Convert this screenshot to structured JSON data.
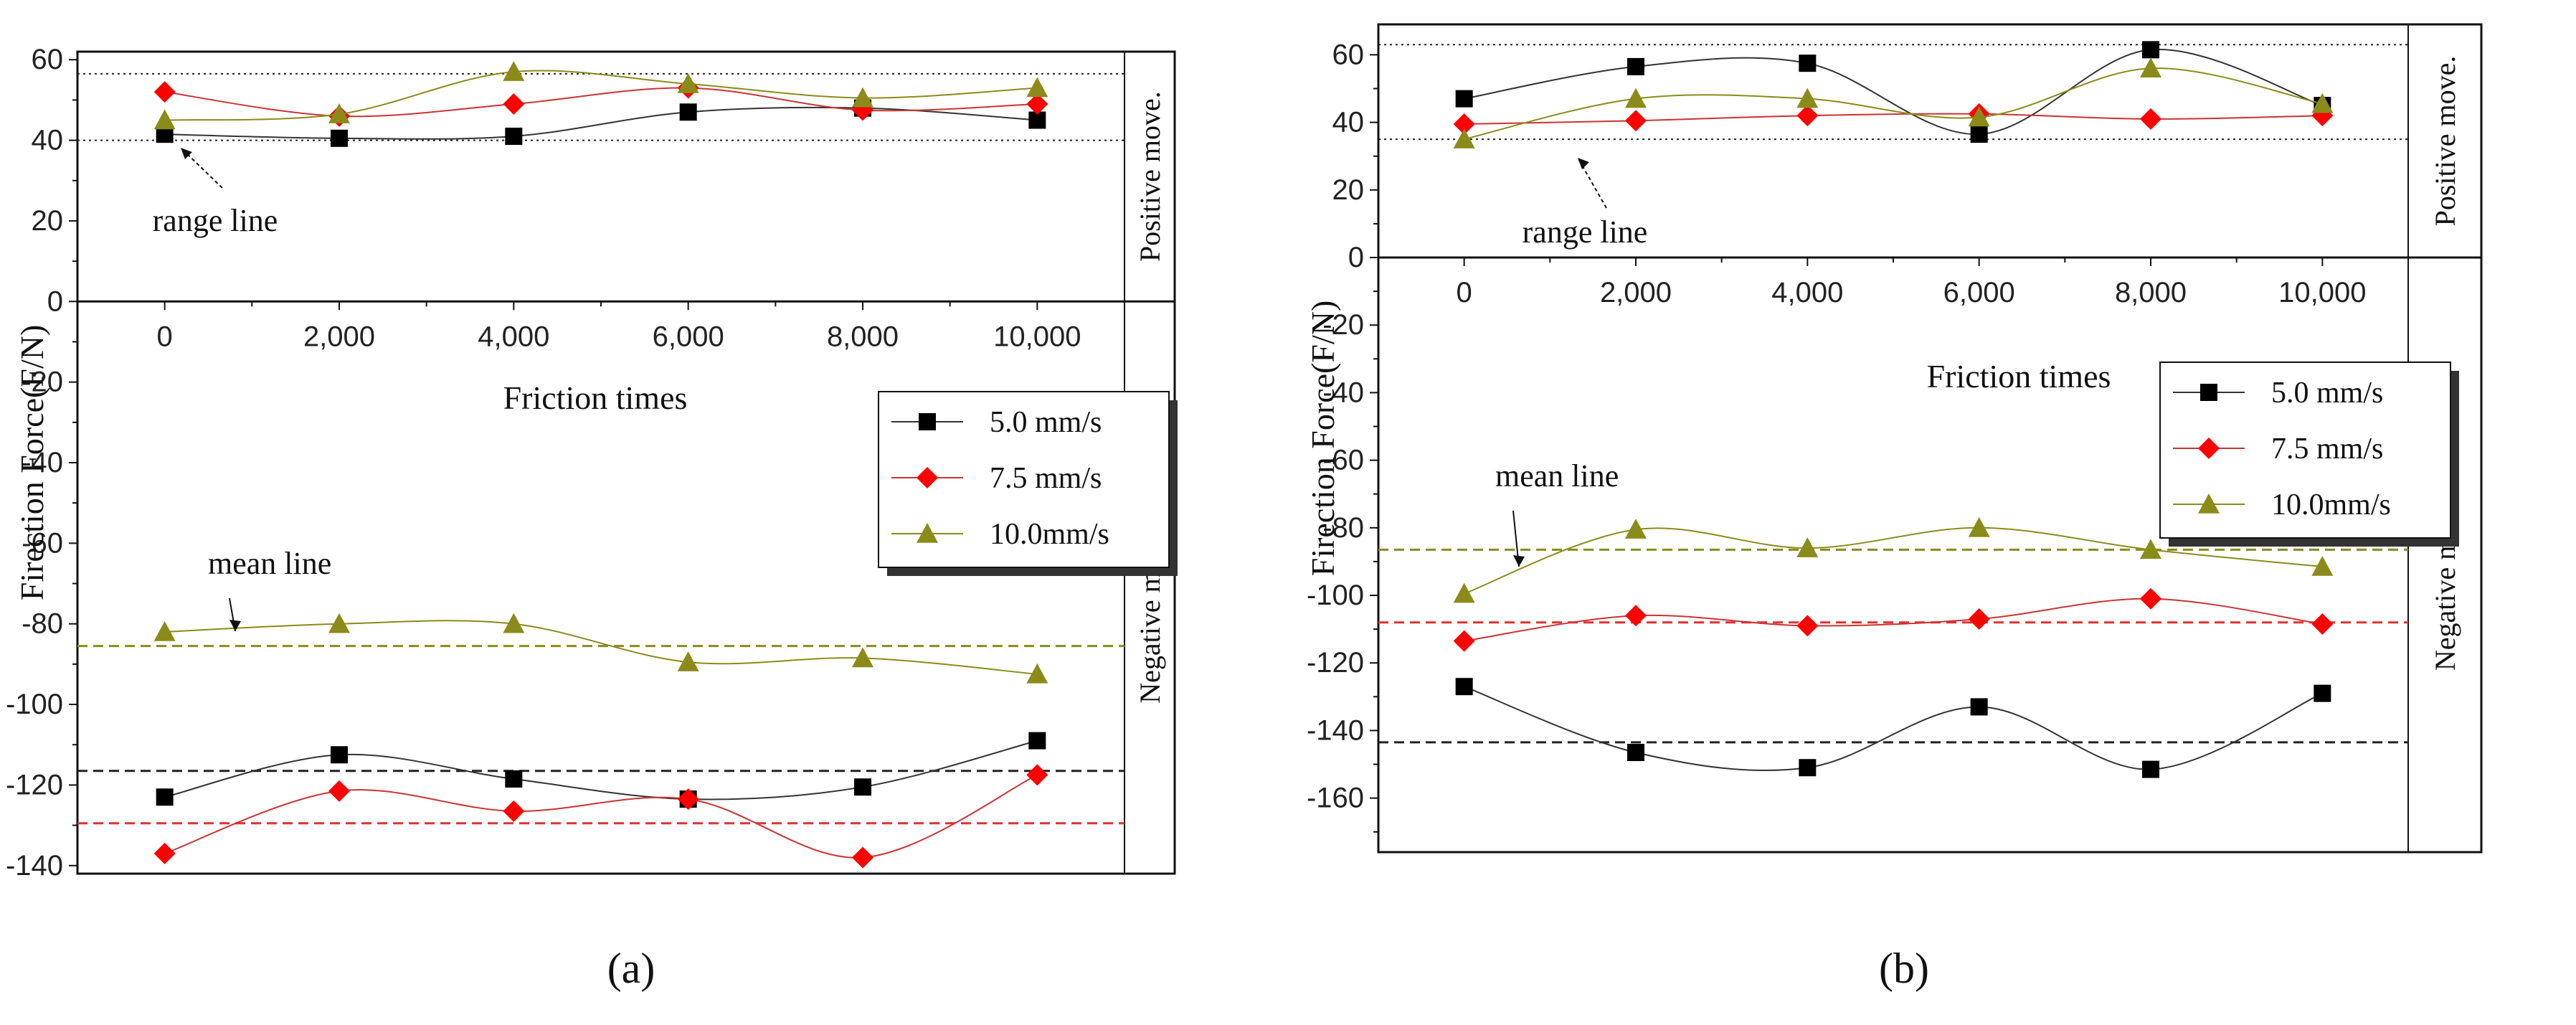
{
  "chart_data": [
    {
      "id": "a",
      "type": "line",
      "panel_label": "(a)",
      "ylabel": "Firection Force(F/N)",
      "xlabel": "Friction times",
      "x": [
        0,
        2000,
        4000,
        6000,
        8000,
        10000
      ],
      "x_tick_labels": [
        "0",
        "2,000",
        "4,000",
        "6,000",
        "8,000",
        "10,000"
      ],
      "y_ticks": [
        60,
        40,
        20,
        0,
        -20,
        -40,
        -60,
        -80,
        -100,
        -120,
        -140
      ],
      "ylim": [
        -142,
        62
      ],
      "xlim": [
        -1000,
        11000
      ],
      "positive_label": "Positive move.",
      "negative_label": "Negative movement",
      "range_line_label": "range line",
      "mean_line_label": "mean line",
      "range_lines": [
        56.5,
        40
      ],
      "mean_lines": [
        {
          "series": "10.0mm/s",
          "value": -85.5,
          "color": "#8b8b1a"
        },
        {
          "series": "5.0 mm/s",
          "value": -116.5,
          "color": "#222222"
        },
        {
          "series": "7.5 mm/s",
          "value": -129.5,
          "color": "#e23030"
        }
      ],
      "series": [
        {
          "name": "5.0 mm/s",
          "marker": "square",
          "color": "#000000",
          "line_color": "#333333",
          "positive": [
            41.5,
            40.5,
            41,
            47,
            48,
            45
          ],
          "negative": [
            -123,
            -112.5,
            -118.5,
            -123.5,
            -120.5,
            -109
          ]
        },
        {
          "name": "7.5 mm/s",
          "marker": "diamond",
          "color": "#ff0000",
          "line_color": "#cc3333",
          "positive": [
            52,
            46,
            49,
            53,
            47.5,
            49
          ],
          "negative": [
            -137,
            -121.5,
            -126.5,
            -123.5,
            -138,
            -117.5
          ]
        },
        {
          "name": "10.0mm/s",
          "marker": "triangle",
          "color": "#8b8b1a",
          "line_color": "#8b8b1a",
          "positive": [
            45,
            46.5,
            57,
            54,
            50.5,
            53
          ],
          "negative": [
            -82,
            -80,
            -80,
            -89.5,
            -88.5,
            -92.5
          ]
        }
      ]
    },
    {
      "id": "b",
      "type": "line",
      "panel_label": "(b)",
      "ylabel": "Firection Force(F/N)",
      "xlabel": "Friction times",
      "x": [
        0,
        2000,
        4000,
        6000,
        8000,
        10000
      ],
      "x_tick_labels": [
        "0",
        "2,000",
        "4,000",
        "6,000",
        "8,000",
        "10,000"
      ],
      "y_ticks": [
        60,
        40,
        20,
        0,
        -20,
        -40,
        -60,
        -80,
        -100,
        -120,
        -140,
        -160
      ],
      "ylim": [
        -176,
        69
      ],
      "xlim": [
        -1000,
        11000
      ],
      "positive_label": "Positive move.",
      "negative_label": "Negative movement",
      "range_line_label": "range line",
      "mean_line_label": "mean line",
      "range_lines": [
        63,
        35
      ],
      "mean_lines": [
        {
          "series": "10.0mm/s",
          "value": -86.5,
          "color": "#8b8b1a"
        },
        {
          "series": "7.5 mm/s",
          "value": -108,
          "color": "#e23030"
        },
        {
          "series": "5.0 mm/s",
          "value": -143.5,
          "color": "#222222"
        }
      ],
      "series": [
        {
          "name": "5.0 mm/s",
          "marker": "square",
          "color": "#000000",
          "line_color": "#333333",
          "positive": [
            47,
            56.5,
            57.5,
            36.5,
            61.5,
            45
          ],
          "negative": [
            -127,
            -146.5,
            -151,
            -133,
            -151.5,
            -129
          ]
        },
        {
          "name": "7.5 mm/s",
          "marker": "diamond",
          "color": "#ff0000",
          "line_color": "#cc3333",
          "positive": [
            39.5,
            40.5,
            42,
            42.5,
            41,
            42
          ],
          "negative": [
            -113.5,
            -106,
            -109,
            -107,
            -101,
            -108.5
          ]
        },
        {
          "name": "10.0mm/s",
          "marker": "triangle",
          "color": "#8b8b1a",
          "line_color": "#8b8b1a",
          "positive": [
            35,
            47,
            47,
            41.5,
            56,
            45.5
          ],
          "negative": [
            -99.5,
            -80.5,
            -86,
            -80,
            -86.5,
            -91.5
          ]
        }
      ]
    }
  ]
}
